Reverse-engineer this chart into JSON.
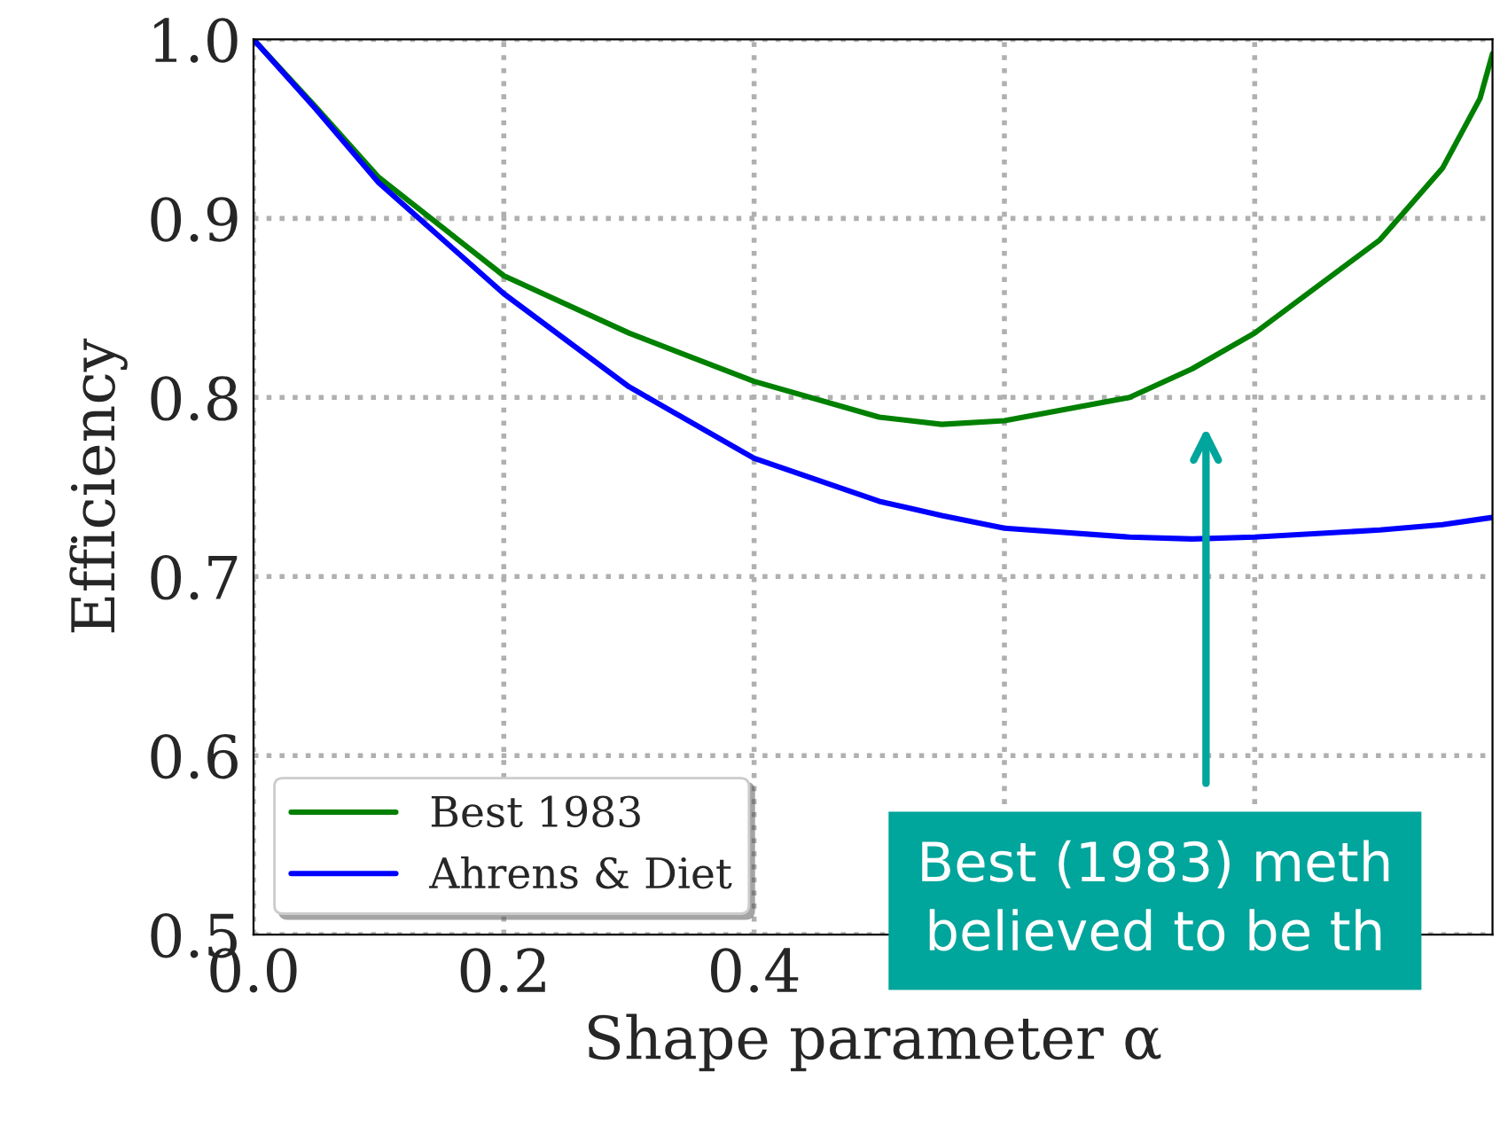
{
  "chart_data": {
    "type": "line",
    "xlabel": "Shape parameter α",
    "ylabel": "Efficiency",
    "x": [
      0,
      0.05,
      0.1,
      0.2,
      0.3,
      0.4,
      0.5,
      0.55,
      0.6,
      0.7,
      0.75,
      0.8,
      0.9,
      0.95,
      0.98,
      0.99
    ],
    "series": [
      {
        "name": "Best 1983",
        "color": "#008000",
        "values": [
          1.0,
          0.962,
          0.923,
          0.868,
          0.836,
          0.809,
          0.789,
          0.785,
          0.787,
          0.8,
          0.816,
          0.836,
          0.888,
          0.928,
          0.967,
          0.992
        ]
      },
      {
        "name": "Ahrens & Diet",
        "color": "#0000ff",
        "values": [
          1.0,
          0.961,
          0.92,
          0.858,
          0.806,
          0.766,
          0.742,
          0.734,
          0.727,
          0.722,
          0.721,
          0.722,
          0.726,
          0.729,
          0.732,
          0.733
        ]
      }
    ],
    "xlim": [
      0,
      0.99
    ],
    "ylim": [
      0.5,
      1.0
    ],
    "xticks": [
      {
        "value": 0,
        "label": "0.0"
      },
      0.2,
      0.4,
      {
        "value": 0.6,
        "label": null
      },
      {
        "value": 0.8,
        "label": null
      }
    ],
    "yticks": [
      0.5,
      0.6,
      0.7,
      0.8,
      0.9,
      {
        "value": 1,
        "label": "1.0"
      }
    ],
    "grid": true,
    "legend": "bottom left",
    "annotations": [
      "Best (1983) meth\nbelieved to be th"
    ]
  }
}
